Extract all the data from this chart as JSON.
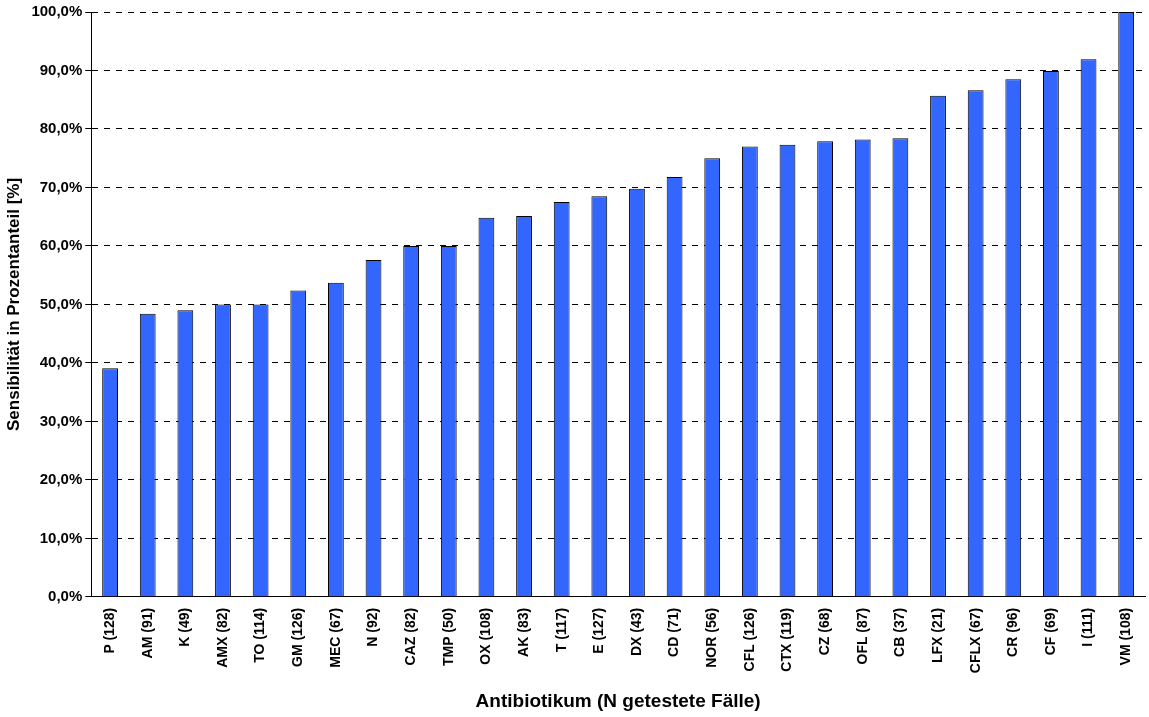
{
  "chart_data": {
    "type": "bar",
    "xlabel": "Antibiotikum (N getestete Fälle)",
    "ylabel": "Sensibilität in Prozentanteil [%]",
    "categories": [
      "P (128)",
      "AM (91)",
      "K (49)",
      "AMX (82)",
      "TO (114)",
      "GM (126)",
      "MEC (67)",
      "N (92)",
      "CAZ (82)",
      "TMP (50)",
      "OX (108)",
      "AK (83)",
      "T (117)",
      "E (127)",
      "DX (43)",
      "CD (71)",
      "NOR (56)",
      "CFL (126)",
      "CTX (119)",
      "CZ (68)",
      "OFL (87)",
      "CB (37)",
      "LFX (21)",
      "CFLX (67)",
      "CR (96)",
      "CF (69)",
      "I (111)",
      "VM (108)"
    ],
    "values": [
      39.1,
      48.4,
      49.0,
      50.0,
      50.0,
      52.4,
      53.7,
      57.6,
      60.0,
      60.0,
      64.8,
      65.1,
      67.5,
      68.5,
      69.8,
      71.8,
      75.0,
      77.0,
      77.3,
      77.9,
      78.2,
      78.4,
      85.7,
      86.6,
      88.5,
      89.9,
      91.9,
      100
    ],
    "color": "#3366ff",
    "ylim": [
      0,
      100
    ],
    "yticks": [
      {
        "value": 0,
        "label": "0,0%"
      },
      {
        "value": 10,
        "label": "10,0%"
      },
      {
        "value": 20,
        "label": "20,0%"
      },
      {
        "value": 30,
        "label": "30,0%"
      },
      {
        "value": 40,
        "label": "40,0%"
      },
      {
        "value": 50,
        "label": "50,0%"
      },
      {
        "value": 60,
        "label": "60,0%"
      },
      {
        "value": 70,
        "label": "70,0%"
      },
      {
        "value": 80,
        "label": "80,0%"
      },
      {
        "value": 90,
        "label": "90,0%"
      },
      {
        "value": 100,
        "label": "100,0%"
      }
    ],
    "grid": "y",
    "line_style": "dashed",
    "legend": false
  }
}
